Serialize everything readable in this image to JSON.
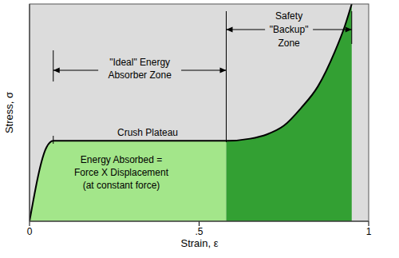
{
  "chart_data": {
    "type": "area",
    "xlabel": "Strain, ε",
    "ylabel": "Stress, σ",
    "x": [
      0,
      0.05,
      0.07,
      0.1,
      0.2,
      0.3,
      0.4,
      0.5,
      0.58,
      0.65,
      0.7,
      0.75,
      0.8,
      0.85,
      0.9,
      0.93,
      0.95
    ],
    "series": [
      {
        "color": "#000000",
        "values": [
          0,
          0.34,
          0.37,
          0.37,
          0.37,
          0.37,
          0.37,
          0.37,
          0.37,
          0.38,
          0.4,
          0.44,
          0.52,
          0.62,
          0.78,
          0.9,
          1.0
        ]
      }
    ],
    "xlim": [
      0,
      1
    ],
    "xticks": [
      0,
      {
        "value": 0.5,
        "label": ".5"
      },
      1
    ],
    "ylim": [
      0,
      1
    ],
    "yticks": [],
    "tick_labels": "x",
    "grid": false,
    "zones": [
      {
        "label": [
          "\"Ideal\" Energy",
          "Absorber Zone"
        ],
        "from": 0.07,
        "to": 0.58,
        "color": "#a3e68a"
      },
      {
        "label": [
          "Safety",
          "\"Backup\"",
          "Zone"
        ],
        "from": 0.58,
        "to": 0.95,
        "color": "#33a033"
      }
    ],
    "plateau_label": "Crush Plateau",
    "energy_label": [
      "Energy Absorbed =",
      "Force X Displacement",
      "(at constant force)"
    ]
  }
}
